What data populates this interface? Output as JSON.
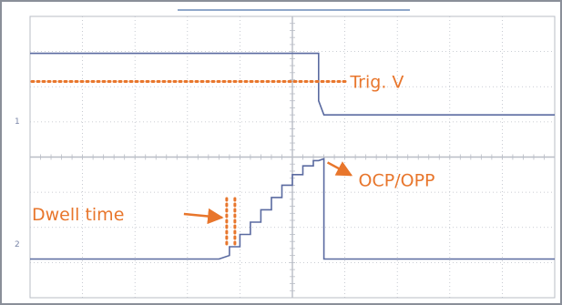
{
  "chart_data": {
    "type": "line",
    "title": "",
    "xlabel": "",
    "ylabel": "",
    "grid": true,
    "grid_divisions": {
      "x": 10,
      "y": 8
    },
    "x_range": [
      0,
      10
    ],
    "y_range": [
      0,
      8
    ],
    "channel_markers": [
      "1",
      "2"
    ],
    "colors": {
      "trace": "#5a6aa0",
      "annotation": "#e8762c",
      "grid": "#b9bdc6",
      "frame": "#8a8f99"
    },
    "series": [
      {
        "x": [
          0,
          5.5,
          5.5,
          5.6,
          10
        ],
        "y": [
          6.95,
          6.95,
          5.6,
          5.2,
          5.2
        ]
      },
      {
        "x": [
          0,
          3.6,
          3.8,
          3.8,
          4.0,
          4.0,
          4.2,
          4.2,
          4.4,
          4.4,
          4.6,
          4.6,
          4.8,
          4.8,
          5.0,
          5.0,
          5.2,
          5.2,
          5.4,
          5.4,
          5.5,
          5.6,
          5.6,
          10
        ],
        "y": [
          1.1,
          1.1,
          1.2,
          1.45,
          1.45,
          1.8,
          1.8,
          2.15,
          2.15,
          2.5,
          2.5,
          2.85,
          2.85,
          3.2,
          3.2,
          3.5,
          3.5,
          3.75,
          3.75,
          3.9,
          3.9,
          3.95,
          1.1,
          1.1
        ]
      }
    ],
    "annotations": [
      {
        "text": "Trig. V",
        "y": 6.15,
        "kind": "trigger-level"
      },
      {
        "text": "OCP/OPP",
        "x": 5.6,
        "y": 3.95,
        "kind": "peak"
      },
      {
        "text": "Dwell time",
        "x": 3.8,
        "y": 1.45,
        "kind": "step-width"
      }
    ]
  }
}
